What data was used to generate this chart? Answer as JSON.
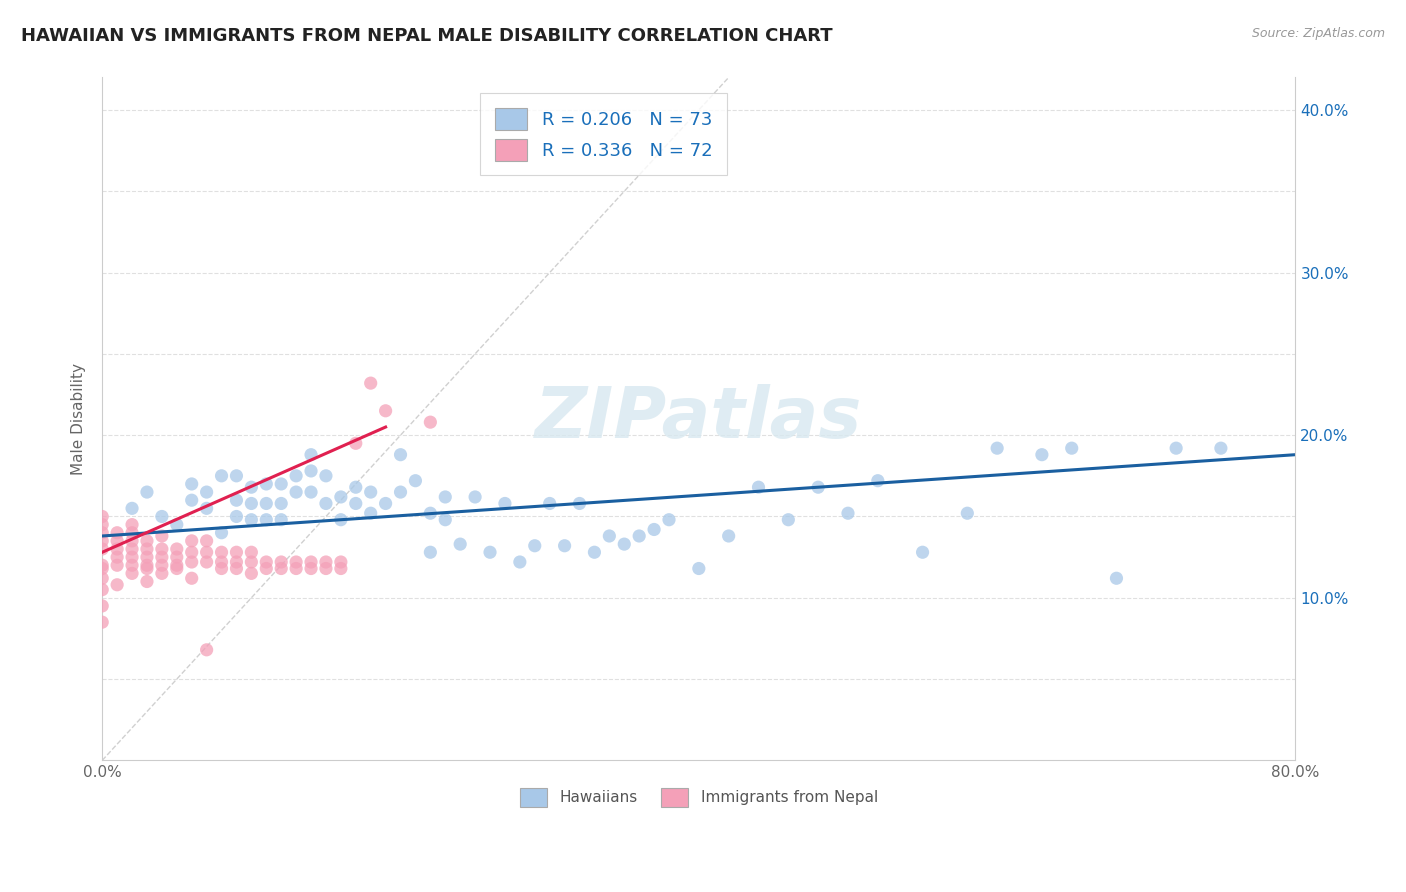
{
  "title": "HAWAIIAN VS IMMIGRANTS FROM NEPAL MALE DISABILITY CORRELATION CHART",
  "source": "Source: ZipAtlas.com",
  "ylabel": "Male Disability",
  "xlim": [
    0.0,
    0.8
  ],
  "ylim": [
    0.0,
    0.42
  ],
  "xtick_positions": [
    0.0,
    0.1,
    0.2,
    0.3,
    0.4,
    0.5,
    0.6,
    0.7,
    0.8
  ],
  "xticklabels": [
    "0.0%",
    "",
    "",
    "",
    "",
    "",
    "",
    "",
    "80.0%"
  ],
  "ytick_positions": [
    0.0,
    0.05,
    0.1,
    0.15,
    0.2,
    0.25,
    0.3,
    0.35,
    0.4
  ],
  "yticklabels": [
    "",
    "",
    "10.0%",
    "",
    "20.0%",
    "",
    "30.0%",
    "",
    "40.0%"
  ],
  "hawaiians_color": "#a8c8e8",
  "nepal_color": "#f4a0b8",
  "hawaiians_line_color": "#1a5fa0",
  "nepal_line_color": "#e02050",
  "diagonal_color": "#d0d0d0",
  "R_hawaiians": 0.206,
  "N_hawaiians": 73,
  "R_nepal": 0.336,
  "N_nepal": 72,
  "legend_hawaiians": "Hawaiians",
  "legend_nepal": "Immigrants from Nepal",
  "watermark": "ZIPatlas",
  "hawaiians_x": [
    0.02,
    0.03,
    0.04,
    0.05,
    0.06,
    0.06,
    0.07,
    0.07,
    0.08,
    0.08,
    0.09,
    0.09,
    0.09,
    0.1,
    0.1,
    0.1,
    0.11,
    0.11,
    0.11,
    0.12,
    0.12,
    0.12,
    0.13,
    0.13,
    0.14,
    0.14,
    0.14,
    0.15,
    0.15,
    0.16,
    0.16,
    0.17,
    0.17,
    0.18,
    0.18,
    0.19,
    0.2,
    0.2,
    0.21,
    0.22,
    0.22,
    0.23,
    0.23,
    0.24,
    0.25,
    0.26,
    0.27,
    0.28,
    0.29,
    0.3,
    0.31,
    0.32,
    0.33,
    0.34,
    0.35,
    0.36,
    0.37,
    0.38,
    0.4,
    0.42,
    0.44,
    0.46,
    0.48,
    0.5,
    0.52,
    0.55,
    0.58,
    0.6,
    0.63,
    0.65,
    0.68,
    0.72,
    0.75
  ],
  "hawaiians_y": [
    0.155,
    0.165,
    0.15,
    0.145,
    0.16,
    0.17,
    0.155,
    0.165,
    0.14,
    0.175,
    0.15,
    0.16,
    0.175,
    0.148,
    0.158,
    0.168,
    0.148,
    0.158,
    0.17,
    0.148,
    0.158,
    0.17,
    0.165,
    0.175,
    0.165,
    0.178,
    0.188,
    0.158,
    0.175,
    0.148,
    0.162,
    0.158,
    0.168,
    0.165,
    0.152,
    0.158,
    0.165,
    0.188,
    0.172,
    0.128,
    0.152,
    0.148,
    0.162,
    0.133,
    0.162,
    0.128,
    0.158,
    0.122,
    0.132,
    0.158,
    0.132,
    0.158,
    0.128,
    0.138,
    0.133,
    0.138,
    0.142,
    0.148,
    0.118,
    0.138,
    0.168,
    0.148,
    0.168,
    0.152,
    0.172,
    0.128,
    0.152,
    0.192,
    0.188,
    0.192,
    0.112,
    0.192,
    0.192
  ],
  "nepal_x": [
    0.0,
    0.0,
    0.0,
    0.0,
    0.0,
    0.0,
    0.0,
    0.0,
    0.0,
    0.0,
    0.0,
    0.01,
    0.01,
    0.01,
    0.01,
    0.01,
    0.01,
    0.02,
    0.02,
    0.02,
    0.02,
    0.02,
    0.02,
    0.02,
    0.03,
    0.03,
    0.03,
    0.03,
    0.03,
    0.03,
    0.04,
    0.04,
    0.04,
    0.04,
    0.04,
    0.05,
    0.05,
    0.05,
    0.05,
    0.06,
    0.06,
    0.06,
    0.06,
    0.07,
    0.07,
    0.07,
    0.08,
    0.08,
    0.08,
    0.09,
    0.09,
    0.09,
    0.1,
    0.1,
    0.1,
    0.11,
    0.11,
    0.12,
    0.12,
    0.13,
    0.13,
    0.14,
    0.14,
    0.15,
    0.15,
    0.16,
    0.16,
    0.17,
    0.18,
    0.19,
    0.22,
    0.07
  ],
  "nepal_y": [
    0.12,
    0.13,
    0.135,
    0.14,
    0.145,
    0.15,
    0.105,
    0.112,
    0.118,
    0.095,
    0.085,
    0.12,
    0.125,
    0.13,
    0.135,
    0.14,
    0.108,
    0.12,
    0.125,
    0.13,
    0.135,
    0.14,
    0.145,
    0.115,
    0.12,
    0.125,
    0.13,
    0.135,
    0.11,
    0.118,
    0.12,
    0.125,
    0.13,
    0.138,
    0.115,
    0.12,
    0.125,
    0.13,
    0.118,
    0.122,
    0.128,
    0.135,
    0.112,
    0.122,
    0.128,
    0.135,
    0.122,
    0.128,
    0.118,
    0.122,
    0.128,
    0.118,
    0.122,
    0.128,
    0.115,
    0.122,
    0.118,
    0.122,
    0.118,
    0.122,
    0.118,
    0.122,
    0.118,
    0.122,
    0.118,
    0.122,
    0.118,
    0.195,
    0.232,
    0.215,
    0.208,
    0.068
  ],
  "hawaiians_trend_x": [
    0.0,
    0.8
  ],
  "hawaiians_trend_y": [
    0.138,
    0.188
  ],
  "nepal_trend_x": [
    0.0,
    0.19
  ],
  "nepal_trend_y": [
    0.128,
    0.205
  ]
}
